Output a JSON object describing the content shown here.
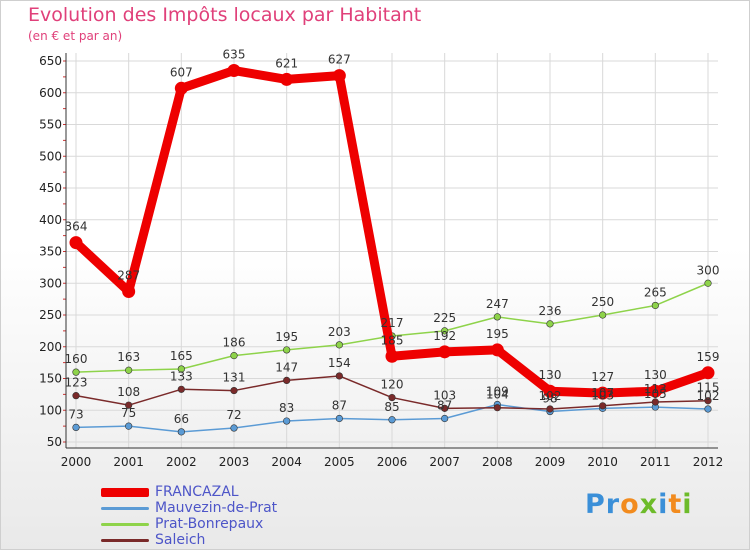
{
  "chart_data": {
    "type": "line",
    "title": "Evolution des Impôts locaux par Habitant",
    "subtitle": "(en € et par an)",
    "xlabel": "",
    "ylabel": "",
    "ylim": [
      50,
      650
    ],
    "yticks": [
      50,
      100,
      150,
      200,
      250,
      300,
      350,
      400,
      450,
      500,
      550,
      600,
      650
    ],
    "categories": [
      "2000",
      "2001",
      "2002",
      "2003",
      "2004",
      "2005",
      "2006",
      "2007",
      "2008",
      "2009",
      "2010",
      "2011",
      "2012"
    ],
    "series": [
      {
        "name": "FRANCAZAL",
        "color": "#ee0000",
        "values": [
          364,
          287,
          607,
          635,
          621,
          627,
          185,
          192,
          195,
          130,
          127,
          130,
          159
        ]
      },
      {
        "name": "Mauvezin-de-Prat",
        "color": "#5b9bd5",
        "values": [
          73,
          75,
          66,
          72,
          83,
          87,
          85,
          87,
          109,
          98,
          103,
          105,
          102
        ]
      },
      {
        "name": "Prat-Bonrepaux",
        "color": "#8ed34a",
        "values": [
          160,
          163,
          165,
          186,
          195,
          203,
          217,
          225,
          247,
          236,
          250,
          265,
          300
        ]
      },
      {
        "name": "Saleich",
        "color": "#7a2a2a",
        "values": [
          123,
          108,
          133,
          131,
          147,
          154,
          120,
          103,
          104,
          102,
          107,
          113,
          115
        ]
      }
    ],
    "grid": true,
    "legend_position": "bottom-left"
  },
  "brand": {
    "text": "Proxiti",
    "letters": [
      {
        "char": "P",
        "color": "#3a8fd8"
      },
      {
        "char": "r",
        "color": "#3a8fd8"
      },
      {
        "char": "o",
        "color": "#f28b1e"
      },
      {
        "char": "x",
        "color": "#6dbb2a"
      },
      {
        "char": "i",
        "color": "#3a8fd8"
      },
      {
        "char": "t",
        "color": "#f28b1e"
      },
      {
        "char": "i",
        "color": "#6dbb2a"
      }
    ]
  }
}
